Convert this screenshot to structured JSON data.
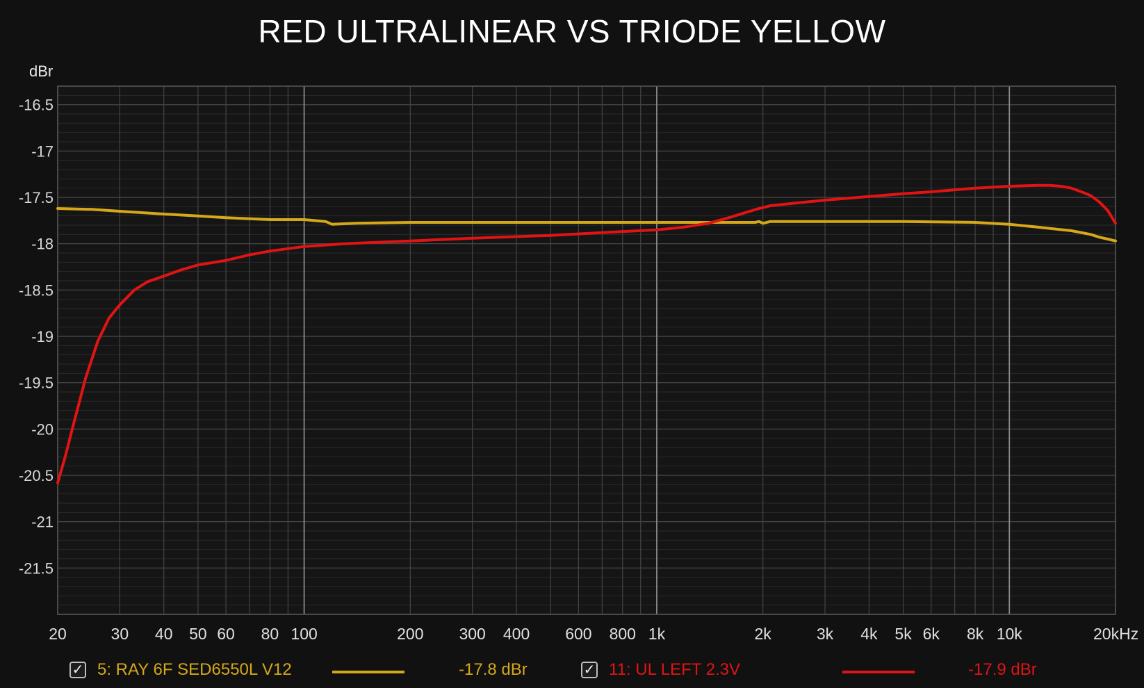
{
  "chart_data": {
    "type": "line",
    "title": "RED ULTRALINEAR VS TRIODE YELLOW",
    "ylabel": "dBr",
    "xscale": "log",
    "xlim": [
      20,
      20000
    ],
    "ylim": [
      -22,
      -16.3
    ],
    "grid": true,
    "y_ticks": [
      -16.5,
      -17,
      -17.5,
      -18,
      -18.5,
      -19,
      -19.5,
      -20,
      -20.5,
      -21,
      -21.5
    ],
    "y_tick_labels": [
      "-16.5",
      "-17",
      "-17.5",
      "-18",
      "-18.5",
      "-19",
      "-19.5",
      "-20",
      "-20.5",
      "-21",
      "-21.5"
    ],
    "x_ticks": [
      20,
      30,
      40,
      50,
      60,
      80,
      100,
      200,
      300,
      400,
      600,
      800,
      1000,
      2000,
      3000,
      4000,
      5000,
      6000,
      8000,
      10000,
      20000
    ],
    "x_tick_labels": [
      "20",
      "30",
      "40",
      "50",
      "60",
      "80",
      "100",
      "200",
      "300",
      "400",
      "600",
      "800",
      "1k",
      "2k",
      "3k",
      "4k",
      "5k",
      "6k",
      "8k",
      "10k",
      "20kHz"
    ],
    "series": [
      {
        "name": "5: RAY 6F SED6550L V12",
        "color": "#d4a819",
        "checked": true,
        "value_label": "-17.8 dBr",
        "x": [
          20,
          25,
          30,
          40,
          50,
          60,
          80,
          100,
          115,
          120,
          140,
          200,
          300,
          500,
          1000,
          1500,
          1900,
          1950,
          2000,
          2100,
          3000,
          5000,
          8000,
          10000,
          12000,
          15000,
          17000,
          18000,
          19000,
          20000
        ],
        "y": [
          -17.62,
          -17.63,
          -17.65,
          -17.68,
          -17.7,
          -17.72,
          -17.74,
          -17.74,
          -17.76,
          -17.79,
          -17.78,
          -17.77,
          -17.77,
          -17.77,
          -17.77,
          -17.77,
          -17.77,
          -17.76,
          -17.78,
          -17.76,
          -17.76,
          -17.76,
          -17.77,
          -17.79,
          -17.82,
          -17.86,
          -17.9,
          -17.93,
          -17.95,
          -17.97
        ]
      },
      {
        "name": "11: UL LEFT 2.3V",
        "color": "#e01414",
        "checked": true,
        "value_label": "-17.9 dBr",
        "x": [
          20,
          21,
          22,
          24,
          26,
          28,
          30,
          33,
          36,
          40,
          45,
          50,
          60,
          70,
          80,
          100,
          130,
          200,
          300,
          500,
          700,
          1000,
          1200,
          1400,
          1600,
          1800,
          1950,
          2000,
          2100,
          2500,
          3000,
          4000,
          5000,
          6000,
          8000,
          10000,
          12000,
          13000,
          14000,
          15000,
          16000,
          17000,
          18000,
          19000,
          20000
        ],
        "y": [
          -20.58,
          -20.3,
          -20.0,
          -19.45,
          -19.05,
          -18.8,
          -18.66,
          -18.5,
          -18.41,
          -18.35,
          -18.28,
          -18.23,
          -18.18,
          -18.12,
          -18.08,
          -18.03,
          -18.0,
          -17.97,
          -17.94,
          -17.91,
          -17.88,
          -17.85,
          -17.82,
          -17.78,
          -17.72,
          -17.66,
          -17.62,
          -17.61,
          -17.59,
          -17.56,
          -17.53,
          -17.49,
          -17.46,
          -17.44,
          -17.4,
          -17.38,
          -17.37,
          -17.37,
          -17.38,
          -17.4,
          -17.44,
          -17.48,
          -17.55,
          -17.64,
          -17.78
        ]
      }
    ]
  }
}
